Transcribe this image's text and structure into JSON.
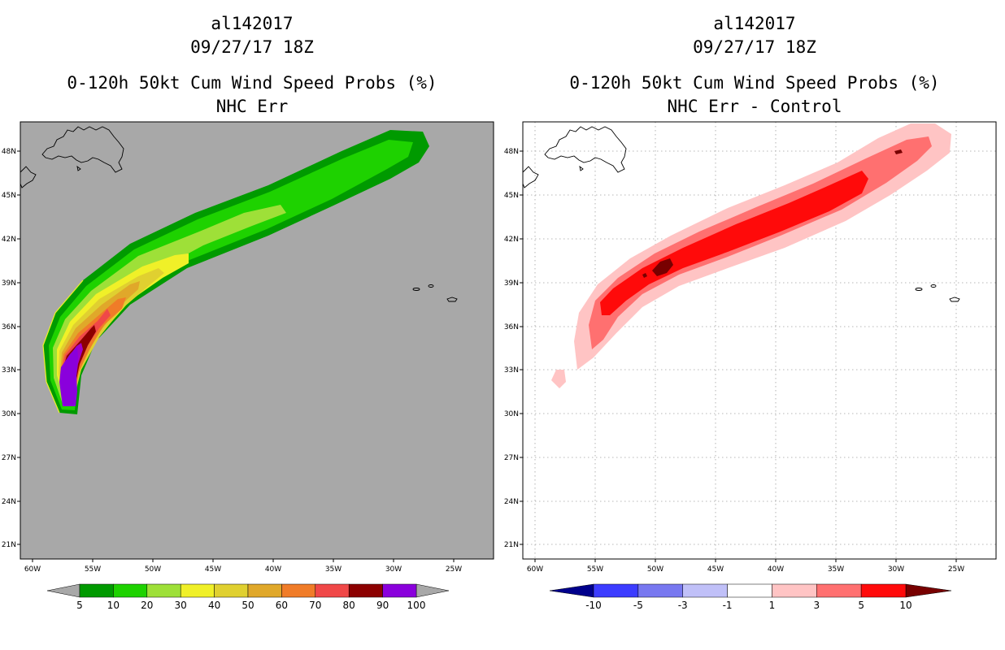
{
  "panels": [
    {
      "title_line1": "al142017",
      "title_line2": "09/27/17 18Z",
      "title_line3": "0-120h 50kt Cum Wind Speed Probs (%)",
      "title_line4": "NHC Err",
      "background": "#a8a8a8"
    },
    {
      "title_line1": "al142017",
      "title_line2": "09/27/17 18Z",
      "title_line3": "0-120h 50kt Cum Wind Speed Probs (%)",
      "title_line4": "NHC Err - Control",
      "background": "#ffffff"
    }
  ],
  "axes": {
    "lat_labels": [
      "48N",
      "45N",
      "42N",
      "39N",
      "36N",
      "33N",
      "30N",
      "27N",
      "24N",
      "21N"
    ],
    "lon_labels": [
      "60W",
      "55W",
      "50W",
      "45W",
      "40W",
      "35W",
      "30W",
      "25W"
    ]
  },
  "colorbar_left": {
    "labels": [
      "5",
      "10",
      "20",
      "30",
      "40",
      "50",
      "60",
      "70",
      "80",
      "90",
      "100"
    ],
    "colors": [
      "#009a00",
      "#1ed200",
      "#9ee038",
      "#f0f028",
      "#e0d030",
      "#e0a82a",
      "#f07c28",
      "#f04848",
      "#8c0000",
      "#8a00dc"
    ],
    "end_color": "#a8a8a8"
  },
  "colorbar_right": {
    "labels": [
      "-10",
      "-5",
      "-3",
      "-1",
      "1",
      "3",
      "5",
      "10"
    ],
    "colors": [
      "#0000dc",
      "#3c3cff",
      "#7878f0",
      "#c0c0f8",
      "#ffffff",
      "#ffc4c4",
      "#ff7070",
      "#ff0a0a"
    ],
    "low_color": "#00008c",
    "high_color": "#780000"
  }
}
